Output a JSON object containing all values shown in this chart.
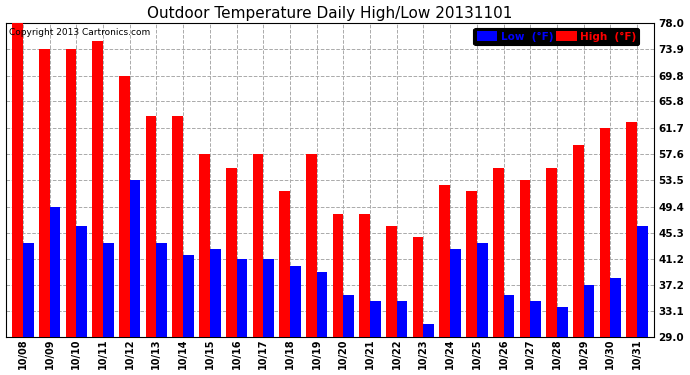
{
  "title": "Outdoor Temperature Daily High/Low 20131101",
  "copyright": "Copyright 2013 Cartronics.com",
  "legend_low": "Low  (°F)",
  "legend_high": "High  (°F)",
  "dates": [
    "10/08",
    "10/09",
    "10/10",
    "10/11",
    "10/12",
    "10/13",
    "10/14",
    "10/15",
    "10/16",
    "10/17",
    "10/18",
    "10/19",
    "10/20",
    "10/21",
    "10/22",
    "10/23",
    "10/24",
    "10/25",
    "10/26",
    "10/27",
    "10/28",
    "10/29",
    "10/30",
    "10/31"
  ],
  "highs": [
    78.0,
    73.9,
    73.9,
    75.2,
    69.8,
    63.5,
    63.5,
    57.6,
    55.4,
    57.6,
    51.8,
    57.6,
    48.2,
    48.2,
    46.4,
    44.6,
    52.7,
    51.8,
    55.4,
    53.6,
    55.4,
    59.0,
    61.7,
    62.6
  ],
  "lows": [
    43.7,
    49.4,
    46.4,
    43.7,
    53.5,
    43.7,
    41.9,
    42.8,
    41.2,
    41.2,
    40.1,
    39.2,
    35.6,
    34.7,
    34.7,
    31.1,
    42.8,
    43.7,
    35.6,
    34.7,
    33.8,
    37.2,
    38.3,
    46.4
  ],
  "ylim": [
    29.0,
    78.0
  ],
  "yticks": [
    29.0,
    33.1,
    37.2,
    41.2,
    45.3,
    49.4,
    53.5,
    57.6,
    61.7,
    65.8,
    69.8,
    73.9,
    78.0
  ],
  "high_color": "#ff0000",
  "low_color": "#0000ff",
  "bg_color": "#ffffff",
  "grid_color": "#aaaaaa",
  "title_fontsize": 11,
  "bar_width": 0.4,
  "figsize": [
    6.9,
    3.75
  ],
  "dpi": 100
}
